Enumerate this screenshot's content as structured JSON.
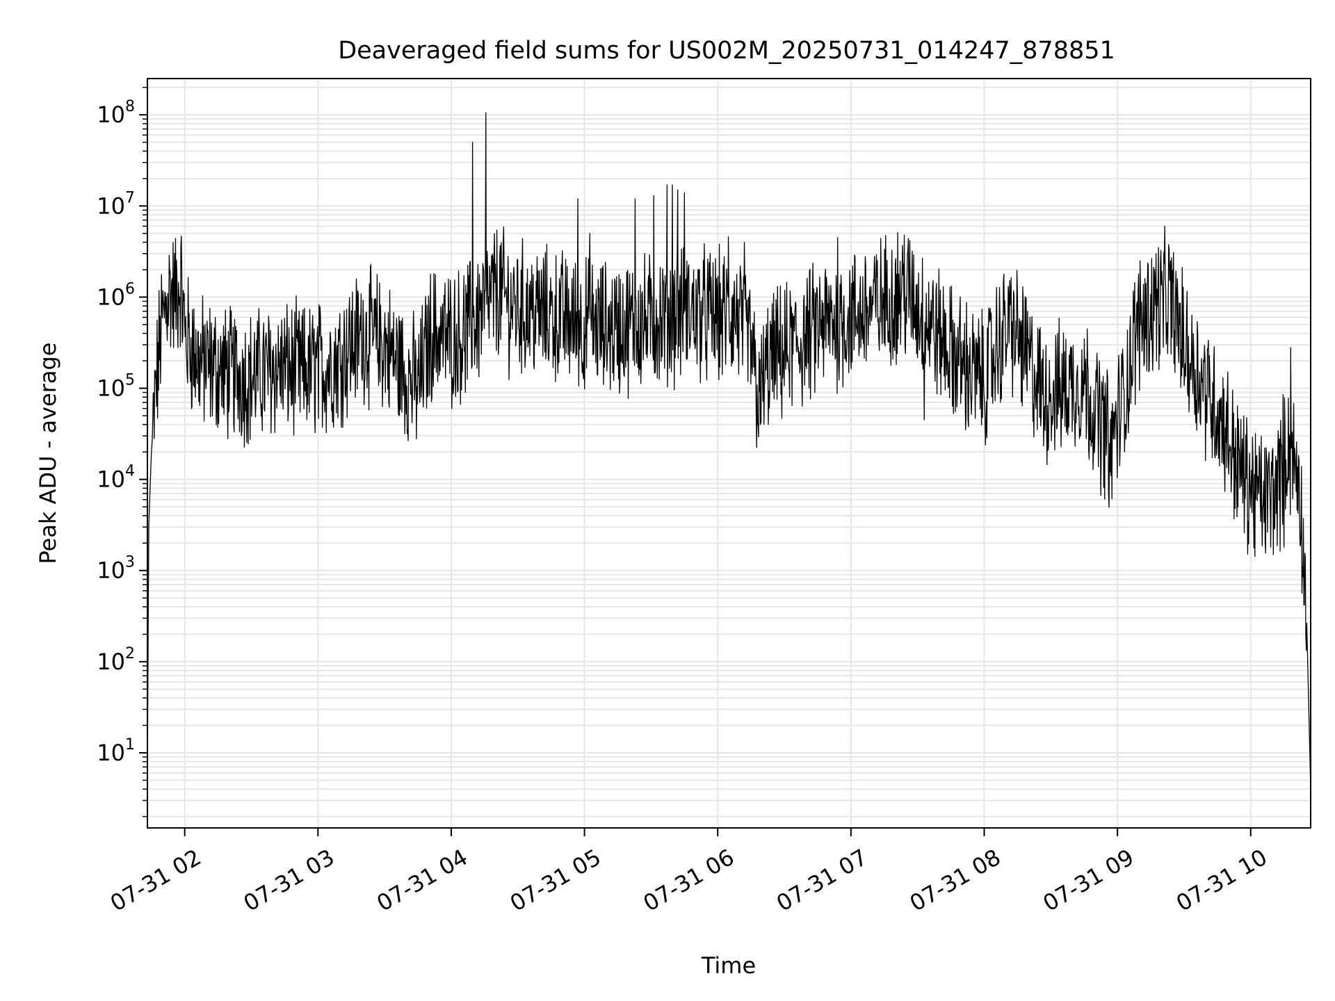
{
  "chart_data": {
    "type": "line",
    "title": "Deaveraged field sums for US002M_20250731_014247_878851",
    "xlabel": "Time",
    "ylabel": "Peak ADU - average",
    "yscale": "log",
    "ylim": [
      1.5,
      250000000
    ],
    "xlim_hours": [
      1.72,
      10.45
    ],
    "grid": true,
    "legend": "none",
    "line_color": "#000000",
    "x_ticks": [
      {
        "hour": 2,
        "label": "07-31 02"
      },
      {
        "hour": 3,
        "label": "07-31 03"
      },
      {
        "hour": 4,
        "label": "07-31 04"
      },
      {
        "hour": 5,
        "label": "07-31 05"
      },
      {
        "hour": 6,
        "label": "07-31 06"
      },
      {
        "hour": 7,
        "label": "07-31 07"
      },
      {
        "hour": 8,
        "label": "07-31 08"
      },
      {
        "hour": 9,
        "label": "07-31 09"
      },
      {
        "hour": 10,
        "label": "07-31 10"
      }
    ],
    "y_ticks": [
      {
        "value": 10,
        "base": "10",
        "exp": "1"
      },
      {
        "value": 100,
        "base": "10",
        "exp": "2"
      },
      {
        "value": 1000,
        "base": "10",
        "exp": "3"
      },
      {
        "value": 10000,
        "base": "10",
        "exp": "4"
      },
      {
        "value": 100000,
        "base": "10",
        "exp": "5"
      },
      {
        "value": 1000000,
        "base": "10",
        "exp": "6"
      },
      {
        "value": 10000000,
        "base": "10",
        "exp": "7"
      },
      {
        "value": 100000000,
        "base": "10",
        "exp": "8"
      }
    ],
    "series": [
      {
        "envelope": [
          [
            1.72,
            5
          ],
          [
            1.73,
            3000
          ],
          [
            1.75,
            20000
          ],
          [
            1.78,
            80000
          ],
          [
            1.82,
            400000
          ],
          [
            1.88,
            1200000
          ],
          [
            1.93,
            1000000
          ],
          [
            1.97,
            1500000
          ],
          [
            2.0,
            400000
          ],
          [
            2.1,
            200000
          ],
          [
            2.3,
            150000
          ],
          [
            2.5,
            130000
          ],
          [
            2.7,
            170000
          ],
          [
            2.9,
            150000
          ],
          [
            3.1,
            180000
          ],
          [
            3.2,
            250000
          ],
          [
            3.35,
            400000
          ],
          [
            3.5,
            300000
          ],
          [
            3.65,
            150000
          ],
          [
            3.75,
            100000
          ],
          [
            3.85,
            400000
          ],
          [
            4.0,
            350000
          ],
          [
            4.1,
            400000
          ],
          [
            4.2,
            600000
          ],
          [
            4.35,
            1200000
          ],
          [
            4.45,
            800000
          ],
          [
            4.6,
            700000
          ],
          [
            4.8,
            600000
          ],
          [
            5.0,
            500000
          ],
          [
            5.2,
            450000
          ],
          [
            5.4,
            500000
          ],
          [
            5.6,
            600000
          ],
          [
            5.8,
            700000
          ],
          [
            6.0,
            600000
          ],
          [
            6.15,
            600000
          ],
          [
            6.25,
            300000
          ],
          [
            6.3,
            80000
          ],
          [
            6.4,
            200000
          ],
          [
            6.6,
            300000
          ],
          [
            6.8,
            500000
          ],
          [
            7.0,
            600000
          ],
          [
            7.2,
            800000
          ],
          [
            7.4,
            1200000
          ],
          [
            7.6,
            500000
          ],
          [
            7.75,
            250000
          ],
          [
            7.9,
            150000
          ],
          [
            8.0,
            120000
          ],
          [
            8.1,
            300000
          ],
          [
            8.2,
            500000
          ],
          [
            8.3,
            250000
          ],
          [
            8.45,
            80000
          ],
          [
            8.6,
            100000
          ],
          [
            8.75,
            120000
          ],
          [
            8.85,
            50000
          ],
          [
            8.95,
            25000
          ],
          [
            9.05,
            80000
          ],
          [
            9.15,
            500000
          ],
          [
            9.3,
            900000
          ],
          [
            9.4,
            900000
          ],
          [
            9.5,
            300000
          ],
          [
            9.6,
            150000
          ],
          [
            9.7,
            80000
          ],
          [
            9.8,
            40000
          ],
          [
            9.9,
            15000
          ],
          [
            10.0,
            8000
          ],
          [
            10.1,
            6000
          ],
          [
            10.2,
            8000
          ],
          [
            10.28,
            25000
          ],
          [
            10.33,
            15000
          ],
          [
            10.37,
            8000
          ],
          [
            10.42,
            300
          ],
          [
            10.45,
            4
          ]
        ],
        "spikes": [
          [
            4.16,
            50000000
          ],
          [
            4.26,
            105000000
          ],
          [
            4.95,
            12000000
          ],
          [
            5.04,
            5000000
          ],
          [
            5.38,
            12000000
          ],
          [
            5.52,
            13000000
          ],
          [
            5.62,
            17000000
          ],
          [
            5.66,
            17000000
          ],
          [
            5.7,
            15000000
          ],
          [
            5.75,
            14000000
          ],
          [
            6.08,
            4600000
          ],
          [
            6.2,
            4000000
          ],
          [
            6.9,
            4500000
          ],
          [
            7.4,
            4800000
          ],
          [
            10.3,
            280000
          ]
        ],
        "dips": [
          [
            6.32,
            40000
          ],
          [
            7.55,
            45000
          ],
          [
            8.95,
            11000
          ],
          [
            10.15,
            1800
          ],
          [
            10.25,
            1800
          ]
        ]
      }
    ]
  }
}
